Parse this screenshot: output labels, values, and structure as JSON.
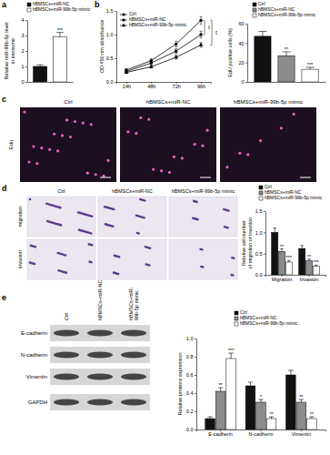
{
  "chart_data": [
    {
      "type": "bar",
      "ylabel": [
        "Relative miR-99b-5p level",
        "in exosome"
      ],
      "categories": [
        "hBMSCs+miR-NC",
        "hBMSCs+miR-99b-5p mimic"
      ],
      "values": [
        1.0,
        2.9
      ],
      "errors": [
        0.1,
        0.3
      ],
      "annotations": [
        null,
        "***"
      ],
      "colors": [
        "#111111",
        "#ffffff"
      ],
      "ylim": [
        0,
        4
      ],
      "yticks": [
        0,
        1,
        2,
        3,
        4
      ],
      "legend": "top",
      "tick_labels": "y"
    },
    {
      "type": "line",
      "ylabel": "OD 450 nm absorbance",
      "categories": [
        "24h",
        "48h",
        "72h",
        "96h"
      ],
      "series": [
        {
          "name": "Ctrl",
          "color": "#000000",
          "marker": "circle",
          "values": [
            0.25,
            0.45,
            0.8,
            1.3
          ],
          "errors": [
            0.03,
            0.04,
            0.06,
            0.08
          ]
        },
        {
          "name": "hBMSCs+miR-NC",
          "color": "#000000",
          "marker": "square",
          "values": [
            0.22,
            0.4,
            0.65,
            1.0
          ],
          "errors": [
            0.03,
            0.03,
            0.05,
            0.07
          ]
        },
        {
          "name": "hBMSCs+miR-99b-5p mimic",
          "color": "#000000",
          "marker": "triangle",
          "values": [
            0.2,
            0.32,
            0.52,
            0.78
          ],
          "errors": [
            0.02,
            0.03,
            0.04,
            0.05
          ]
        }
      ],
      "annotations": [
        "**",
        "**"
      ],
      "ylim": [
        0,
        1.5
      ],
      "yticks": [
        {
          "value": 0,
          "label": "0.0"
        },
        0.5,
        {
          "value": 1,
          "label": "1.0"
        },
        1.5
      ],
      "legend": "upper left"
    },
    {
      "type": "bar",
      "ylabel": "EdU positive cells (%)",
      "categories": [
        "Ctrl",
        "hBMSCs+miR-NC",
        "hBMSCs+miR-99b-5p mimic"
      ],
      "values": [
        47,
        27,
        13
      ],
      "errors": [
        5,
        4,
        2
      ],
      "annotations": [
        null,
        "**",
        "***"
      ],
      "colors": [
        "#111111",
        "#8c8c8c",
        "#ffffff"
      ],
      "ylim": [
        0,
        60
      ],
      "yticks": [
        0,
        20,
        40,
        60
      ],
      "legend": "top",
      "tick_labels": "y"
    },
    {
      "type": "bar",
      "ylabel": [
        "Relative cell number",
        "of migration or invasion"
      ],
      "categories": [
        "Migration",
        "Invasion"
      ],
      "series": [
        {
          "name": "Ctrl",
          "color": "#111111",
          "values": [
            1.0,
            0.62
          ],
          "errors": [
            0.1,
            0.07
          ],
          "annotations": [
            null,
            null
          ]
        },
        {
          "name": "hBMSCs+miR-NC",
          "color": "#8c8c8c",
          "values": [
            0.55,
            0.33
          ],
          "errors": [
            0.06,
            0.04
          ],
          "annotations": [
            "**",
            "**"
          ]
        },
        {
          "name": "hBMSCs+miR-99b-5p mimic",
          "color": "#ffffff",
          "values": [
            0.3,
            0.2
          ],
          "errors": [
            0.04,
            0.03
          ],
          "annotations": [
            "***",
            "***"
          ]
        }
      ],
      "ylim": [
        0,
        1.5
      ],
      "yticks": [
        {
          "value": 0,
          "label": "0.0"
        },
        0.5,
        {
          "value": 1,
          "label": "1.0"
        },
        1.5
      ],
      "legend": "top"
    },
    {
      "type": "bar",
      "ylabel": "Relative proteins expression",
      "categories": [
        "E-cadherin",
        "N-cadherin",
        "Vimentin"
      ],
      "series": [
        {
          "name": "Ctrl",
          "color": "#111111",
          "values": [
            0.12,
            0.48,
            0.6
          ],
          "errors": [
            0.02,
            0.04,
            0.05
          ],
          "annotations": [
            null,
            null,
            null
          ]
        },
        {
          "name": "hBMSCs+miR-NC",
          "color": "#8c8c8c",
          "values": [
            0.42,
            0.3,
            0.3
          ],
          "errors": [
            0.04,
            0.03,
            0.03
          ],
          "annotations": [
            "**",
            "*",
            "**"
          ]
        },
        {
          "name": "hBMSCs+miR-99b-5p mimic",
          "color": "#ffffff",
          "values": [
            0.78,
            0.12,
            0.12
          ],
          "errors": [
            0.06,
            0.02,
            0.02
          ],
          "annotations": [
            "***",
            "**",
            "**"
          ]
        }
      ],
      "ylim": [
        0,
        1.0
      ],
      "yticks": [
        {
          "value": 0,
          "label": "0.0"
        },
        0.2,
        0.4,
        0.6,
        0.8,
        {
          "value": 1,
          "label": "1.0"
        }
      ],
      "legend": "top"
    }
  ],
  "figure": {
    "panel_labels": [
      "a",
      "b",
      "c",
      "d",
      "e"
    ],
    "groups": [
      "Ctrl",
      "hBMSCs+miR-NC",
      "hBMSCs+miR-99b-5p mimic"
    ],
    "edu_label": "Edu",
    "assay_rows": [
      "migration",
      "invasion"
    ],
    "blot_rows": [
      "E-cadherin",
      "N-cadherin",
      "Vimentin",
      "GAPDH"
    ]
  }
}
